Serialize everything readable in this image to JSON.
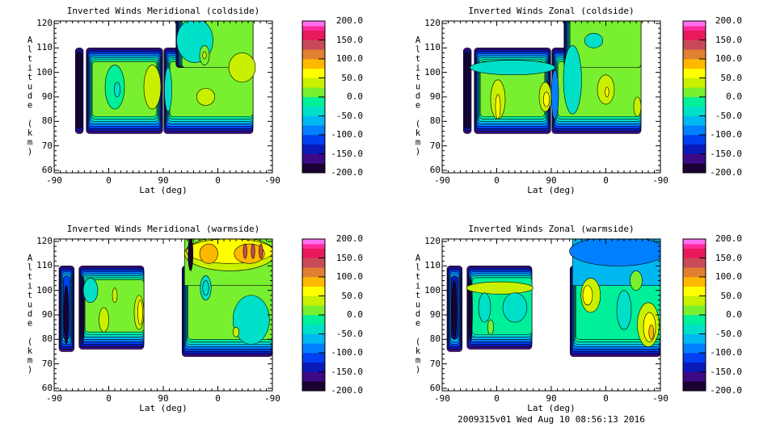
{
  "footer": "2009315v01 Wed Aug 10 08:56:13 2016",
  "colorbar": {
    "levels": [
      -200,
      -175,
      -150,
      -125,
      -100,
      -75,
      -50,
      -25,
      0,
      25,
      50,
      75,
      100,
      125,
      150,
      175,
      200
    ],
    "colors": [
      "#1a0033",
      "#3c0a85",
      "#0a1ab8",
      "#0040f0",
      "#0080ff",
      "#00b8f0",
      "#00e0c8",
      "#00f09a",
      "#78f030",
      "#c8f000",
      "#ffff00",
      "#ffb800",
      "#e08030",
      "#c84a58",
      "#e81a5a",
      "#ff2a9a"
    ],
    "top_color": "#ff70f0",
    "labels": [
      "200.0",
      "150.0",
      "100.0",
      "50.0",
      "0.0",
      "-50.0",
      "-100.0",
      "-150.0",
      "-200.0"
    ]
  },
  "chart_data": [
    {
      "type": "heatmap",
      "title": "Inverted Winds Meridional (coldside)",
      "xlabel": "Lat (deg)",
      "ylabel": "Altitude (km)",
      "xticks": [
        "-90",
        "0",
        "90",
        "0",
        "-90"
      ],
      "yticks": [
        "60",
        "70",
        "80",
        "90",
        "100",
        "110",
        "120"
      ],
      "ylim": [
        59,
        121
      ],
      "xlim_orbit": [
        0,
        360
      ],
      "blocks": [
        {
          "u": [
            35,
            48
          ],
          "alt": [
            75,
            110
          ],
          "edges": "LRTB",
          "levels": [
            -175,
            -150
          ],
          "fill": -200
        },
        {
          "u": [
            53,
            179
          ],
          "alt": [
            75,
            110
          ],
          "edges": "LRTB",
          "levels": [
            -175,
            -150,
            -125,
            -100,
            -75,
            -50,
            -25
          ],
          "fill": 0
        },
        {
          "u": [
            181,
            328
          ],
          "alt": [
            75,
            110
          ],
          "edges": "LTB",
          "levels": [
            -175,
            -150,
            -125,
            -100,
            -75,
            -50,
            -25
          ],
          "fill": 0
        },
        {
          "u": [
            201,
            328
          ],
          "alt": [
            102,
            125
          ],
          "edges": "L",
          "levels": [
            -175,
            -150,
            -125,
            -100,
            -75,
            -50,
            -25
          ],
          "fill": 0
        }
      ],
      "spots": [
        {
          "u": 100,
          "alt": 94,
          "ru": 16,
          "ralt": 9,
          "v": -25
        },
        {
          "u": 104,
          "alt": 93,
          "ru": 5,
          "ralt": 3,
          "v": -50
        },
        {
          "u": 162,
          "alt": 94,
          "ru": 14,
          "ralt": 9,
          "v": 25
        },
        {
          "u": 188,
          "alt": 93,
          "ru": 6,
          "ralt": 9,
          "v": -50
        },
        {
          "u": 232,
          "alt": 113,
          "ru": 30,
          "ralt": 9,
          "v": -40
        },
        {
          "u": 248,
          "alt": 107,
          "ru": 8,
          "ralt": 4,
          "v": 0
        },
        {
          "u": 248,
          "alt": 107,
          "ru": 3,
          "ralt": 1.5,
          "v": 25
        },
        {
          "u": 250,
          "alt": 90,
          "ru": 15,
          "ralt": 3.5,
          "v": 25
        },
        {
          "u": 310,
          "alt": 102,
          "ru": 22,
          "ralt": 6,
          "v": 25
        }
      ]
    },
    {
      "type": "heatmap",
      "title": "Inverted Winds Zonal (coldside)",
      "xlabel": "Lat (deg)",
      "ylabel": "Altitude (km)",
      "xticks": [
        "-90",
        "0",
        "90",
        "0",
        "-90"
      ],
      "yticks": [
        "60",
        "70",
        "80",
        "90",
        "100",
        "110",
        "120"
      ],
      "ylim": [
        59,
        121
      ],
      "xlim_orbit": [
        0,
        360
      ],
      "blocks": [
        {
          "u": [
            35,
            48
          ],
          "alt": [
            75,
            110
          ],
          "edges": "LRTB",
          "levels": [
            -175,
            -150
          ],
          "fill": -200
        },
        {
          "u": [
            53,
            179
          ],
          "alt": [
            75,
            110
          ],
          "edges": "LRTB",
          "levels": [
            -175,
            -150,
            -125,
            -100,
            -75,
            -50,
            -25
          ],
          "fill": 0
        },
        {
          "u": [
            181,
            328
          ],
          "alt": [
            75,
            110
          ],
          "edges": "LTB",
          "levels": [
            -175,
            -150,
            -125,
            -100,
            -75,
            -50,
            -25
          ],
          "fill": 0
        },
        {
          "u": [
            201,
            328
          ],
          "alt": [
            102,
            125
          ],
          "edges": "L",
          "levels": [
            -175,
            -150,
            -125,
            -100,
            -75,
            -50,
            -25
          ],
          "fill": 0
        }
      ],
      "spots": [
        {
          "u": 116,
          "alt": 102,
          "ru": 70,
          "ralt": 3,
          "v": -35
        },
        {
          "u": 92,
          "alt": 89,
          "ru": 12,
          "ralt": 8,
          "v": 25
        },
        {
          "u": 92,
          "alt": 86,
          "ru": 4,
          "ralt": 5,
          "v": 50
        },
        {
          "u": 170,
          "alt": 90,
          "ru": 10,
          "ralt": 6,
          "v": 25
        },
        {
          "u": 172,
          "alt": 89,
          "ru": 5,
          "ralt": 3,
          "v": 50
        },
        {
          "u": 186,
          "alt": 91,
          "ru": 6,
          "ralt": 10,
          "v": -100
        },
        {
          "u": 215,
          "alt": 97,
          "ru": 15,
          "ralt": 14,
          "v": -30
        },
        {
          "u": 250,
          "alt": 113,
          "ru": 15,
          "ralt": 3,
          "v": -30
        },
        {
          "u": 270,
          "alt": 93,
          "ru": 14,
          "ralt": 6,
          "v": 25
        },
        {
          "u": 272,
          "alt": 92,
          "ru": 3,
          "ralt": 2,
          "v": 50
        },
        {
          "u": 322,
          "alt": 86,
          "ru": 6,
          "ralt": 4,
          "v": 25
        }
      ]
    },
    {
      "type": "heatmap",
      "title": "Inverted Winds Meridional (warmside)",
      "xlabel": "Lat (deg)",
      "ylabel": "Altitude (km)",
      "xticks": [
        "-90",
        "0",
        "90",
        "0",
        "-90"
      ],
      "yticks": [
        "60",
        "70",
        "80",
        "90",
        "100",
        "110",
        "120"
      ],
      "ylim": [
        59,
        121
      ],
      "xlim_orbit": [
        0,
        360
      ],
      "blocks": [
        {
          "u": [
            8,
            33
          ],
          "alt": [
            75,
            110
          ],
          "edges": "LRTB",
          "levels": [
            -175,
            -150,
            -125,
            -100,
            -75
          ],
          "fill": -125
        },
        {
          "u": [
            41,
            148
          ],
          "alt": [
            76,
            110
          ],
          "edges": "LTB",
          "levels": [
            -175,
            -150,
            -125,
            -100,
            -75,
            -50,
            -25
          ],
          "fill": 0
        },
        {
          "u": [
            211,
            360
          ],
          "alt": [
            73,
            110
          ],
          "edges": "LB",
          "levels": [
            -175,
            -150,
            -125,
            -100,
            -75,
            -50,
            -25
          ],
          "fill": 0
        },
        {
          "u": [
            215,
            360
          ],
          "alt": [
            102,
            125
          ],
          "edges": "",
          "levels": [],
          "fill": 0
        }
      ],
      "spots": [
        {
          "u": 20,
          "alt": 90,
          "ru": 4,
          "ralt": 12,
          "v": -200
        },
        {
          "u": 47,
          "alt": 92,
          "ru": 3,
          "ralt": 14,
          "v": -200
        },
        {
          "u": 60,
          "alt": 100,
          "ru": 12,
          "ralt": 5,
          "v": -30
        },
        {
          "u": 82,
          "alt": 88,
          "ru": 8,
          "ralt": 5,
          "v": 25
        },
        {
          "u": 100,
          "alt": 98,
          "ru": 4,
          "ralt": 3,
          "v": 25
        },
        {
          "u": 140,
          "alt": 91,
          "ru": 8,
          "ralt": 7,
          "v": 25
        },
        {
          "u": 142,
          "alt": 91,
          "ru": 4,
          "ralt": 5,
          "v": 50
        },
        {
          "u": 290,
          "alt": 115,
          "ru": 75,
          "ralt": 7,
          "v": 25
        },
        {
          "u": 290,
          "alt": 116,
          "ru": 72,
          "ralt": 5,
          "v": 50
        },
        {
          "u": 255,
          "alt": 115,
          "ru": 15,
          "ralt": 4,
          "v": 75
        },
        {
          "u": 322,
          "alt": 115,
          "ru": 25,
          "ralt": 4,
          "v": 75
        },
        {
          "u": 315,
          "alt": 116,
          "ru": 3,
          "ralt": 3,
          "v": 125
        },
        {
          "u": 328,
          "alt": 116,
          "ru": 3,
          "ralt": 3,
          "v": 125
        },
        {
          "u": 341,
          "alt": 116,
          "ru": 3,
          "ralt": 3,
          "v": 125
        },
        {
          "u": 250,
          "alt": 101,
          "ru": 9,
          "ralt": 5,
          "v": -30
        },
        {
          "u": 250,
          "alt": 101,
          "ru": 5,
          "ralt": 3,
          "v": -50
        },
        {
          "u": 325,
          "alt": 88,
          "ru": 30,
          "ralt": 10,
          "v": -30
        },
        {
          "u": 300,
          "alt": 83,
          "ru": 5,
          "ralt": 2,
          "v": 25
        },
        {
          "u": 225,
          "alt": 115,
          "ru": 4,
          "ralt": 7,
          "v": -200
        }
      ]
    },
    {
      "type": "heatmap",
      "title": "Inverted Winds Zonal (warmside)",
      "xlabel": "Lat (deg)",
      "ylabel": "Altitude (km)",
      "xticks": [
        "-90",
        "0",
        "90",
        "0",
        "-90"
      ],
      "yticks": [
        "60",
        "70",
        "80",
        "90",
        "100",
        "110",
        "120"
      ],
      "ylim": [
        59,
        121
      ],
      "xlim_orbit": [
        0,
        360
      ],
      "blocks": [
        {
          "u": [
            8,
            33
          ],
          "alt": [
            75,
            110
          ],
          "edges": "LRTB",
          "levels": [
            -175,
            -150,
            -125,
            -100,
            -75
          ],
          "fill": -150
        },
        {
          "u": [
            41,
            148
          ],
          "alt": [
            76,
            110
          ],
          "edges": "LTB",
          "levels": [
            -175,
            -150,
            -125,
            -100,
            -75,
            -50
          ],
          "fill": -25
        },
        {
          "u": [
            211,
            360
          ],
          "alt": [
            73,
            110
          ],
          "edges": "LB",
          "levels": [
            -175,
            -150,
            -125,
            -100,
            -75,
            -50,
            -25
          ],
          "fill": -10
        },
        {
          "u": [
            215,
            360
          ],
          "alt": [
            102,
            125
          ],
          "edges": "",
          "levels": [],
          "fill": -60
        }
      ],
      "spots": [
        {
          "u": 20,
          "alt": 92,
          "ru": 4,
          "ralt": 12,
          "v": -200
        },
        {
          "u": 47,
          "alt": 92,
          "ru": 3,
          "ralt": 13,
          "v": -200
        },
        {
          "u": 95,
          "alt": 101,
          "ru": 55,
          "ralt": 2.5,
          "v": 25
        },
        {
          "u": 120,
          "alt": 93,
          "ru": 20,
          "ralt": 6,
          "v": -50
        },
        {
          "u": 70,
          "alt": 93,
          "ru": 10,
          "ralt": 6,
          "v": -50
        },
        {
          "u": 80,
          "alt": 85,
          "ru": 5,
          "ralt": 3,
          "v": 0
        },
        {
          "u": 290,
          "alt": 116,
          "ru": 80,
          "ralt": 6,
          "v": -90
        },
        {
          "u": 245,
          "alt": 98,
          "ru": 16,
          "ralt": 7,
          "v": 25
        },
        {
          "u": 240,
          "alt": 98,
          "ru": 8,
          "ralt": 4,
          "v": 50
        },
        {
          "u": 300,
          "alt": 92,
          "ru": 12,
          "ralt": 8,
          "v": -40
        },
        {
          "u": 320,
          "alt": 104,
          "ru": 10,
          "ralt": 4,
          "v": 0
        },
        {
          "u": 340,
          "alt": 86,
          "ru": 18,
          "ralt": 9,
          "v": 25
        },
        {
          "u": 342,
          "alt": 85,
          "ru": 10,
          "ralt": 6,
          "v": 50
        },
        {
          "u": 345,
          "alt": 83,
          "ru": 4,
          "ralt": 3,
          "v": 75
        }
      ]
    }
  ]
}
